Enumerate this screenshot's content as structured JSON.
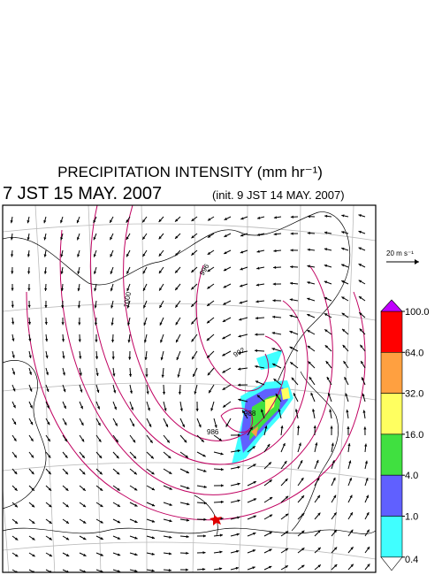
{
  "header": {
    "title": "PRECIPITATION INTENSITY (mm hr⁻¹)",
    "valid_time": "7 JST 15 MAY. 2007",
    "init_time": "(init. 9 JST 14 MAY. 2007)"
  },
  "vector_key": "20 m s⁻¹",
  "contour_labels": [
    "1000",
    "996",
    "992",
    "988",
    "986"
  ],
  "colorbar": {
    "ticks": [
      {
        "value": 100,
        "label": "100.0"
      },
      {
        "value": 64,
        "label": "64.0"
      },
      {
        "value": 32,
        "label": "32.0"
      },
      {
        "value": 16,
        "label": "16.0"
      },
      {
        "value": 4,
        "label": "4.0"
      },
      {
        "value": 1,
        "label": "1.0"
      },
      {
        "value": 0.4,
        "label": "0.4"
      }
    ],
    "colors": [
      "#ff0000",
      "#ffa040",
      "#ffff60",
      "#40e040",
      "#6060ff",
      "#40ffff"
    ],
    "over_color": "#c000ff",
    "under_color": "#ffffff"
  }
}
